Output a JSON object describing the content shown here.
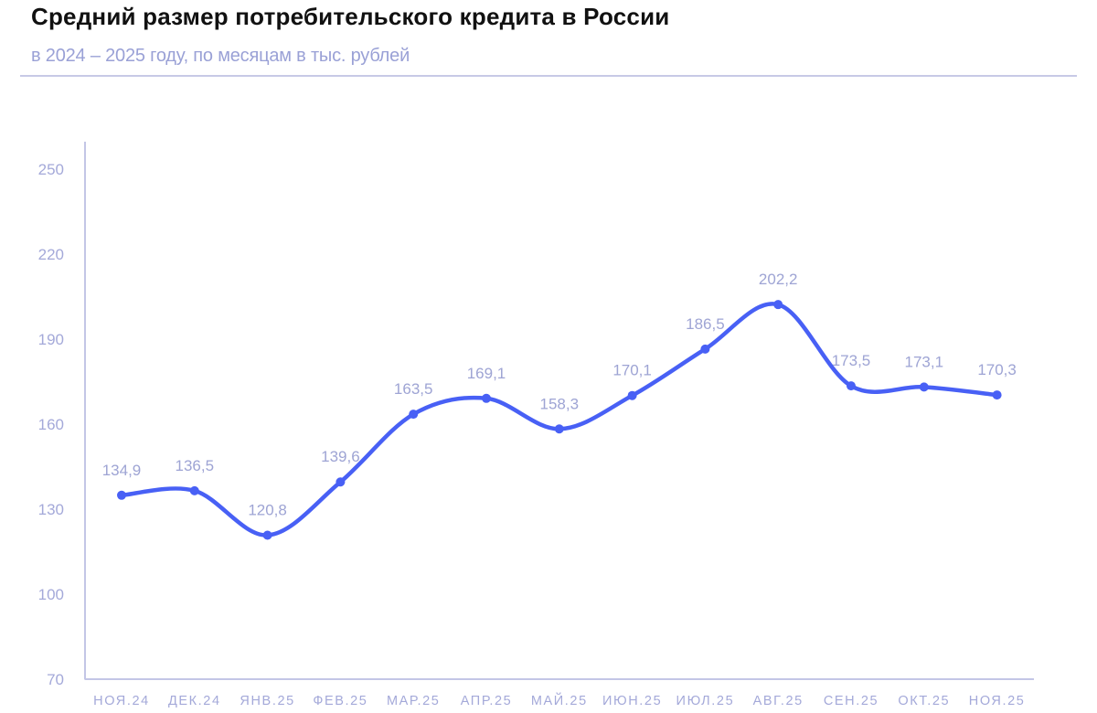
{
  "header": {
    "title": "Средний размер потребительского кредита в России",
    "subtitle": "в 2024 – 2025 году, по месяцам в тыс. рублей"
  },
  "colors": {
    "line": "#4860f5",
    "axis": "#c3c6e6",
    "tick_text": "#a4a9d9",
    "label_text": "#9ea4d4",
    "title": "#111111"
  },
  "chart_data": {
    "type": "line",
    "title": "Средний размер потребительского кредита в России",
    "subtitle": "в 2024 – 2025 году, по месяцам в тыс. рублей",
    "xlabel": "",
    "ylabel": "тыс. рублей",
    "categories": [
      "НОЯ.24",
      "ДЕК.24",
      "ЯНВ.25",
      "ФЕВ.25",
      "МАР.25",
      "АПР.25",
      "МАЙ.25",
      "ИЮН.25",
      "ИЮЛ.25",
      "АВГ.25",
      "СЕН.25",
      "ОКТ.25",
      "НОЯ.25"
    ],
    "values": [
      134.9,
      136.5,
      120.8,
      139.6,
      163.5,
      169.1,
      158.3,
      170.1,
      186.5,
      202.2,
      173.5,
      173.1,
      170.3
    ],
    "value_labels": [
      "134,9",
      "136,5",
      "120,8",
      "139,6",
      "163,5",
      "169,1",
      "158,3",
      "170,1",
      "186,5",
      "202,2",
      "173,5",
      "173,1",
      "170,3"
    ],
    "yticks": [
      70,
      100,
      130,
      160,
      190,
      220,
      250
    ],
    "ylim": [
      70,
      250
    ],
    "grid": false,
    "legend": null,
    "smooth": true
  }
}
